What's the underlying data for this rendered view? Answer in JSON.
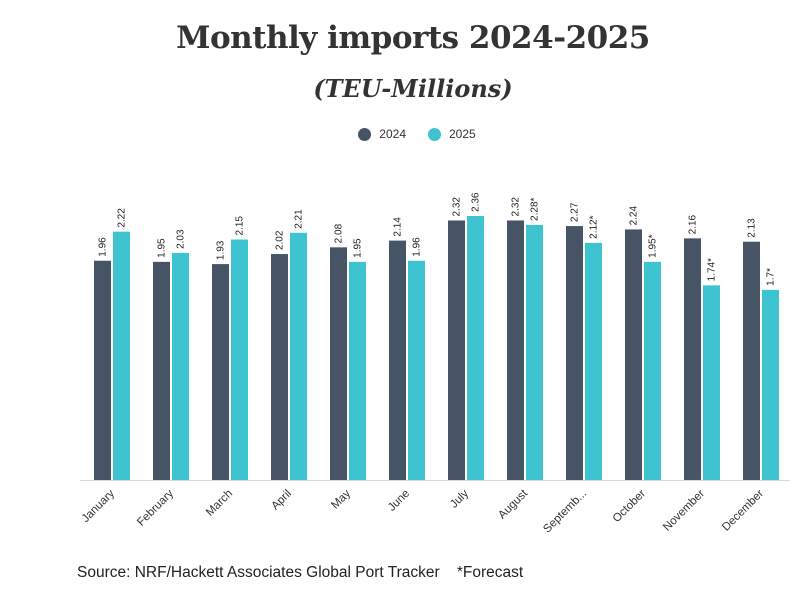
{
  "chart_data": {
    "type": "bar",
    "title": "Monthly imports 2024-2025",
    "subtitle": "(TEU-Millions)",
    "categories": [
      "January",
      "February",
      "March",
      "April",
      "May",
      "June",
      "July",
      "August",
      "Septemb...",
      "October",
      "November",
      "December"
    ],
    "series": [
      {
        "name": "2024",
        "color": "#475466",
        "values": [
          1.96,
          1.95,
          1.93,
          2.02,
          2.08,
          2.14,
          2.32,
          2.32,
          2.27,
          2.24,
          2.16,
          2.13
        ],
        "labels": [
          "1.96",
          "1.95",
          "1.93",
          "2.02",
          "2.08",
          "2.14",
          "2.32",
          "2.32",
          "2.27",
          "2.24",
          "2.16",
          "2.13"
        ]
      },
      {
        "name": "2025",
        "color": "#3ec3d0",
        "values": [
          2.22,
          2.03,
          2.15,
          2.21,
          1.95,
          1.96,
          2.36,
          2.28,
          2.12,
          1.95,
          1.74,
          1.7
        ],
        "labels": [
          "2.22",
          "2.03",
          "2.15",
          "2.21",
          "1.95",
          "1.96",
          "2.36",
          "2.28*",
          "2.12*",
          "1.95*",
          "1.74*",
          "1.7*"
        ]
      }
    ],
    "xlabel": "",
    "ylabel": "",
    "ylim": [
      0,
      2.36
    ],
    "grid": false,
    "legend": "top-center"
  },
  "footer": {
    "source": "Source: NRF/Hackett Associates Global Port Tracker    *Forecast"
  }
}
